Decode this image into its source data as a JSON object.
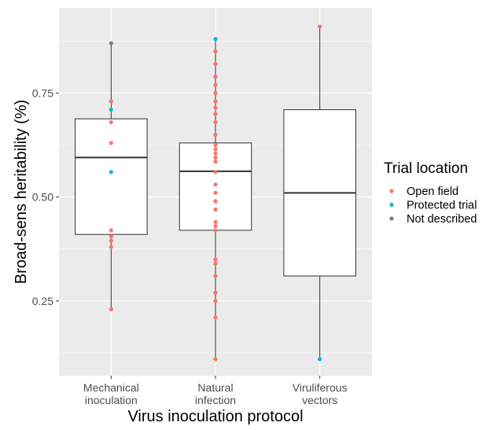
{
  "chart_data": {
    "type": "box",
    "xlabel": "Virus inoculation protocol",
    "ylabel": "Broad-sens heritability (%)",
    "ylim": [
      0.07,
      0.955
    ],
    "yticks": [
      0.25,
      0.5,
      0.75
    ],
    "ytick_labels": [
      "0.25",
      "0.50",
      "0.75"
    ],
    "grid": true,
    "panel_background": "#ebebeb",
    "categories": [
      {
        "key": "mech",
        "lines": [
          "Mechanical",
          "inoculation"
        ]
      },
      {
        "key": "nat",
        "lines": [
          "Natural",
          "infection"
        ]
      },
      {
        "key": "vir",
        "lines": [
          "Viruliferous",
          "vectors"
        ]
      }
    ],
    "boxes": [
      {
        "category": "mech",
        "whisker_low": 0.23,
        "q1": 0.41,
        "median": 0.595,
        "q3": 0.688,
        "whisker_high": 0.87
      },
      {
        "category": "nat",
        "whisker_low": 0.11,
        "q1": 0.42,
        "median": 0.562,
        "q3": 0.63,
        "whisker_high": 0.88
      },
      {
        "category": "vir",
        "whisker_low": 0.11,
        "q1": 0.31,
        "median": 0.51,
        "q3": 0.71,
        "whisker_high": 0.91
      }
    ],
    "legend": {
      "title": "Trial location",
      "placement": "right",
      "entries": [
        {
          "key": "open",
          "label": "Open field",
          "color": "#f8766d"
        },
        {
          "key": "protected",
          "label": "Protected trial",
          "color": "#00bfc4"
        },
        {
          "key": "nd",
          "label": "Not described",
          "color": "#7f7f7f"
        }
      ]
    },
    "points": [
      {
        "category": "mech",
        "y": 0.87,
        "group": "nd"
      },
      {
        "category": "mech",
        "y": 0.73,
        "group": "open"
      },
      {
        "category": "mech",
        "y": 0.71,
        "group": "protected"
      },
      {
        "category": "mech",
        "y": 0.68,
        "group": "open"
      },
      {
        "category": "mech",
        "y": 0.63,
        "group": "open"
      },
      {
        "category": "mech",
        "y": 0.56,
        "group": "protected"
      },
      {
        "category": "mech",
        "y": 0.42,
        "group": "open"
      },
      {
        "category": "mech",
        "y": 0.405,
        "group": "open"
      },
      {
        "category": "mech",
        "y": 0.395,
        "group": "open"
      },
      {
        "category": "mech",
        "y": 0.38,
        "group": "open"
      },
      {
        "category": "mech",
        "y": 0.23,
        "group": "open"
      },
      {
        "category": "nat",
        "y": 0.88,
        "group": "protected"
      },
      {
        "category": "nat",
        "y": 0.85,
        "group": "open"
      },
      {
        "category": "nat",
        "y": 0.82,
        "group": "open"
      },
      {
        "category": "nat",
        "y": 0.79,
        "group": "open"
      },
      {
        "category": "nat",
        "y": 0.77,
        "group": "open"
      },
      {
        "category": "nat",
        "y": 0.75,
        "group": "open"
      },
      {
        "category": "nat",
        "y": 0.73,
        "group": "open"
      },
      {
        "category": "nat",
        "y": 0.715,
        "group": "open"
      },
      {
        "category": "nat",
        "y": 0.7,
        "group": "open"
      },
      {
        "category": "nat",
        "y": 0.68,
        "group": "open"
      },
      {
        "category": "nat",
        "y": 0.65,
        "group": "open"
      },
      {
        "category": "nat",
        "y": 0.625,
        "group": "open"
      },
      {
        "category": "nat",
        "y": 0.615,
        "group": "open"
      },
      {
        "category": "nat",
        "y": 0.605,
        "group": "open"
      },
      {
        "category": "nat",
        "y": 0.595,
        "group": "open"
      },
      {
        "category": "nat",
        "y": 0.585,
        "group": "open"
      },
      {
        "category": "nat",
        "y": 0.56,
        "group": "open"
      },
      {
        "category": "nat",
        "y": 0.53,
        "group": "open"
      },
      {
        "category": "nat",
        "y": 0.51,
        "group": "open"
      },
      {
        "category": "nat",
        "y": 0.49,
        "group": "open"
      },
      {
        "category": "nat",
        "y": 0.47,
        "group": "open"
      },
      {
        "category": "nat",
        "y": 0.44,
        "group": "open"
      },
      {
        "category": "nat",
        "y": 0.43,
        "group": "open"
      },
      {
        "category": "nat",
        "y": 0.42,
        "group": "open"
      },
      {
        "category": "nat",
        "y": 0.35,
        "group": "open"
      },
      {
        "category": "nat",
        "y": 0.34,
        "group": "open"
      },
      {
        "category": "nat",
        "y": 0.31,
        "group": "open"
      },
      {
        "category": "nat",
        "y": 0.27,
        "group": "open"
      },
      {
        "category": "nat",
        "y": 0.25,
        "group": "open"
      },
      {
        "category": "nat",
        "y": 0.21,
        "group": "open"
      },
      {
        "category": "nat",
        "y": 0.11,
        "group": "open"
      },
      {
        "category": "vir",
        "y": 0.91,
        "group": "open"
      },
      {
        "category": "vir",
        "y": 0.11,
        "group": "protected"
      }
    ]
  }
}
